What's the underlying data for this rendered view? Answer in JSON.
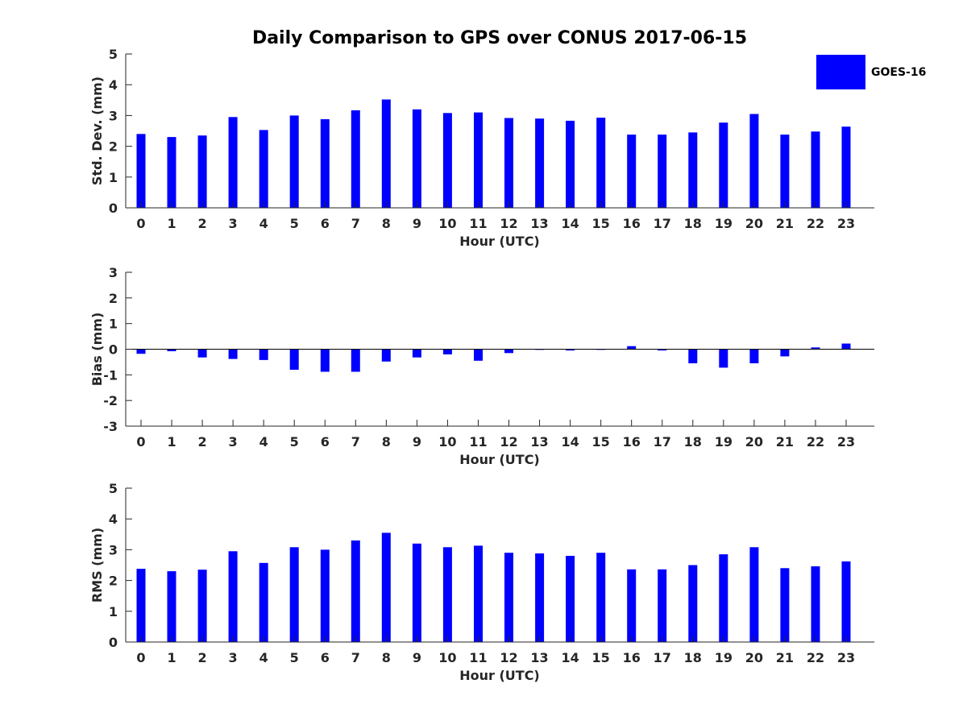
{
  "figure": {
    "title": "Daily Comparison to GPS over CONUS 2017-06-15",
    "legend": {
      "label": "GOES-16",
      "color": "#0000ff",
      "placement": "top-right"
    }
  },
  "chart_data": [
    {
      "type": "bar",
      "series_name": "GOES-16",
      "color": "#0000ff",
      "xlabel": "Hour (UTC)",
      "ylabel": "Std. Dev. (mm)",
      "ylim": [
        0,
        5
      ],
      "yticks": [
        0,
        1,
        2,
        3,
        4,
        5
      ],
      "categories": [
        "0",
        "1",
        "2",
        "3",
        "4",
        "5",
        "6",
        "7",
        "8",
        "9",
        "10",
        "11",
        "12",
        "13",
        "14",
        "15",
        "16",
        "17",
        "18",
        "19",
        "20",
        "21",
        "22",
        "23"
      ],
      "values": [
        2.4,
        2.3,
        2.35,
        2.95,
        2.53,
        3.0,
        2.88,
        3.17,
        3.52,
        3.2,
        3.08,
        3.1,
        2.92,
        2.9,
        2.83,
        2.93,
        2.38,
        2.38,
        2.45,
        2.77,
        3.05,
        2.38,
        2.48,
        2.64
      ]
    },
    {
      "type": "bar",
      "series_name": "GOES-16",
      "color": "#0000ff",
      "xlabel": "Hour (UTC)",
      "ylabel": "Bias (mm)",
      "ylim": [
        -3,
        3
      ],
      "yticks": [
        -3,
        -2,
        -1,
        0,
        1,
        2,
        3
      ],
      "categories": [
        "0",
        "1",
        "2",
        "3",
        "4",
        "5",
        "6",
        "7",
        "8",
        "9",
        "10",
        "11",
        "12",
        "13",
        "14",
        "15",
        "16",
        "17",
        "18",
        "19",
        "20",
        "21",
        "22",
        "23"
      ],
      "values": [
        -0.18,
        -0.08,
        -0.32,
        -0.38,
        -0.42,
        -0.8,
        -0.88,
        -0.88,
        -0.48,
        -0.32,
        -0.2,
        -0.45,
        -0.15,
        -0.02,
        -0.05,
        -0.02,
        0.12,
        -0.05,
        -0.55,
        -0.72,
        -0.55,
        -0.28,
        0.07,
        0.22
      ]
    },
    {
      "type": "bar",
      "series_name": "GOES-16",
      "color": "#0000ff",
      "xlabel": "Hour (UTC)",
      "ylabel": "RMS (mm)",
      "ylim": [
        0,
        5
      ],
      "yticks": [
        0,
        1,
        2,
        3,
        4,
        5
      ],
      "categories": [
        "0",
        "1",
        "2",
        "3",
        "4",
        "5",
        "6",
        "7",
        "8",
        "9",
        "10",
        "11",
        "12",
        "13",
        "14",
        "15",
        "16",
        "17",
        "18",
        "19",
        "20",
        "21",
        "22",
        "23"
      ],
      "values": [
        2.38,
        2.3,
        2.35,
        2.95,
        2.57,
        3.08,
        3.0,
        3.3,
        3.55,
        3.2,
        3.08,
        3.13,
        2.9,
        2.88,
        2.8,
        2.9,
        2.36,
        2.36,
        2.5,
        2.85,
        3.08,
        2.4,
        2.46,
        2.62
      ]
    }
  ]
}
